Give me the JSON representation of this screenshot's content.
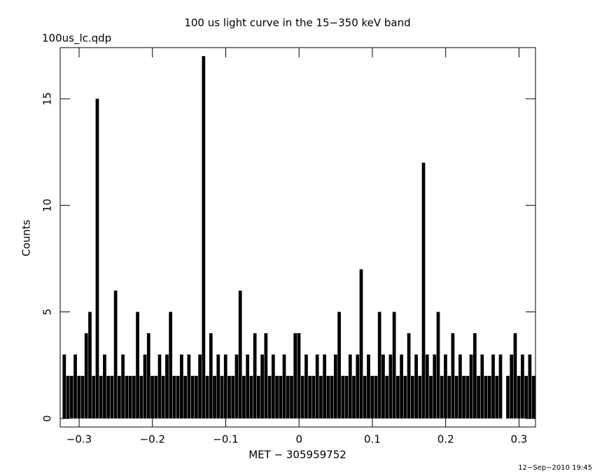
{
  "chart_data": {
    "type": "bar",
    "title": "100 us light curve in the 15−350 keV band",
    "subtitle": "100us_lc.qdp",
    "x_label": "MET − 305959752",
    "y_label": "Counts",
    "footer": "12−Sep−2010 19:45",
    "color": "#000000",
    "xlim": [
      -0.3258,
      0.3225
    ],
    "ylim": [
      -0.4,
      17.4
    ],
    "xticks": [
      {
        "value": -0.3,
        "label": "−0.3"
      },
      {
        "value": -0.2,
        "label": "−0.2"
      },
      {
        "value": -0.1,
        "label": "−0.1"
      },
      0,
      0.1,
      0.2,
      0.3
    ],
    "yticks": [
      0,
      5,
      10,
      15
    ],
    "x": [
      -0.32,
      -0.315,
      -0.31,
      -0.305,
      -0.3,
      -0.295,
      -0.29,
      -0.285,
      -0.28,
      -0.275,
      -0.27,
      -0.265,
      -0.26,
      -0.255,
      -0.25,
      -0.245,
      -0.24,
      -0.235,
      -0.23,
      -0.225,
      -0.22,
      -0.215,
      -0.21,
      -0.205,
      -0.2,
      -0.195,
      -0.19,
      -0.185,
      -0.18,
      -0.175,
      -0.17,
      -0.165,
      -0.16,
      -0.155,
      -0.15,
      -0.145,
      -0.14,
      -0.135,
      -0.13,
      -0.125,
      -0.12,
      -0.115,
      -0.11,
      -0.105,
      -0.1,
      -0.095,
      -0.09,
      -0.085,
      -0.08,
      -0.075,
      -0.07,
      -0.065,
      -0.06,
      -0.055,
      -0.05,
      -0.045,
      -0.04,
      -0.035,
      -0.03,
      -0.025,
      -0.02,
      -0.015,
      -0.01,
      -0.005,
      0,
      0.005,
      0.01,
      0.015,
      0.02,
      0.025,
      0.03,
      0.035,
      0.04,
      0.045,
      0.05,
      0.055,
      0.06,
      0.065,
      0.07,
      0.075,
      0.08,
      0.085,
      0.09,
      0.095,
      0.1,
      0.105,
      0.11,
      0.115,
      0.12,
      0.125,
      0.13,
      0.135,
      0.14,
      0.145,
      0.15,
      0.155,
      0.16,
      0.165,
      0.17,
      0.175,
      0.18,
      0.185,
      0.19,
      0.195,
      0.2,
      0.205,
      0.21,
      0.215,
      0.22,
      0.225,
      0.23,
      0.235,
      0.24,
      0.245,
      0.25,
      0.255,
      0.26,
      0.265,
      0.27,
      0.275,
      0.28,
      0.285,
      0.29,
      0.295,
      0.3,
      0.305,
      0.31,
      0.315,
      0.32
    ],
    "values": [
      3,
      2,
      2,
      3,
      2,
      2,
      4,
      5,
      2,
      15,
      2,
      3,
      2,
      2,
      6,
      2,
      3,
      2,
      2,
      2,
      5,
      2,
      3,
      4,
      2,
      2,
      3,
      2,
      3,
      5,
      2,
      2,
      3,
      2,
      3,
      2,
      2,
      3,
      17,
      2,
      4,
      2,
      3,
      2,
      3,
      2,
      2,
      3,
      6,
      2,
      3,
      2,
      4,
      2,
      3,
      4,
      2,
      3,
      2,
      2,
      3,
      2,
      2,
      4,
      4,
      2,
      3,
      2,
      2,
      3,
      2,
      3,
      2,
      2,
      3,
      5,
      2,
      2,
      3,
      2,
      3,
      7,
      2,
      3,
      2,
      2,
      5,
      3,
      2,
      3,
      5,
      2,
      3,
      2,
      4,
      2,
      3,
      2,
      12,
      3,
      2,
      3,
      5,
      2,
      3,
      2,
      4,
      2,
      3,
      2,
      2,
      3,
      4,
      2,
      3,
      2,
      2,
      3,
      2,
      3,
      0,
      2,
      3,
      4,
      2,
      3,
      2,
      3,
      2
    ]
  }
}
